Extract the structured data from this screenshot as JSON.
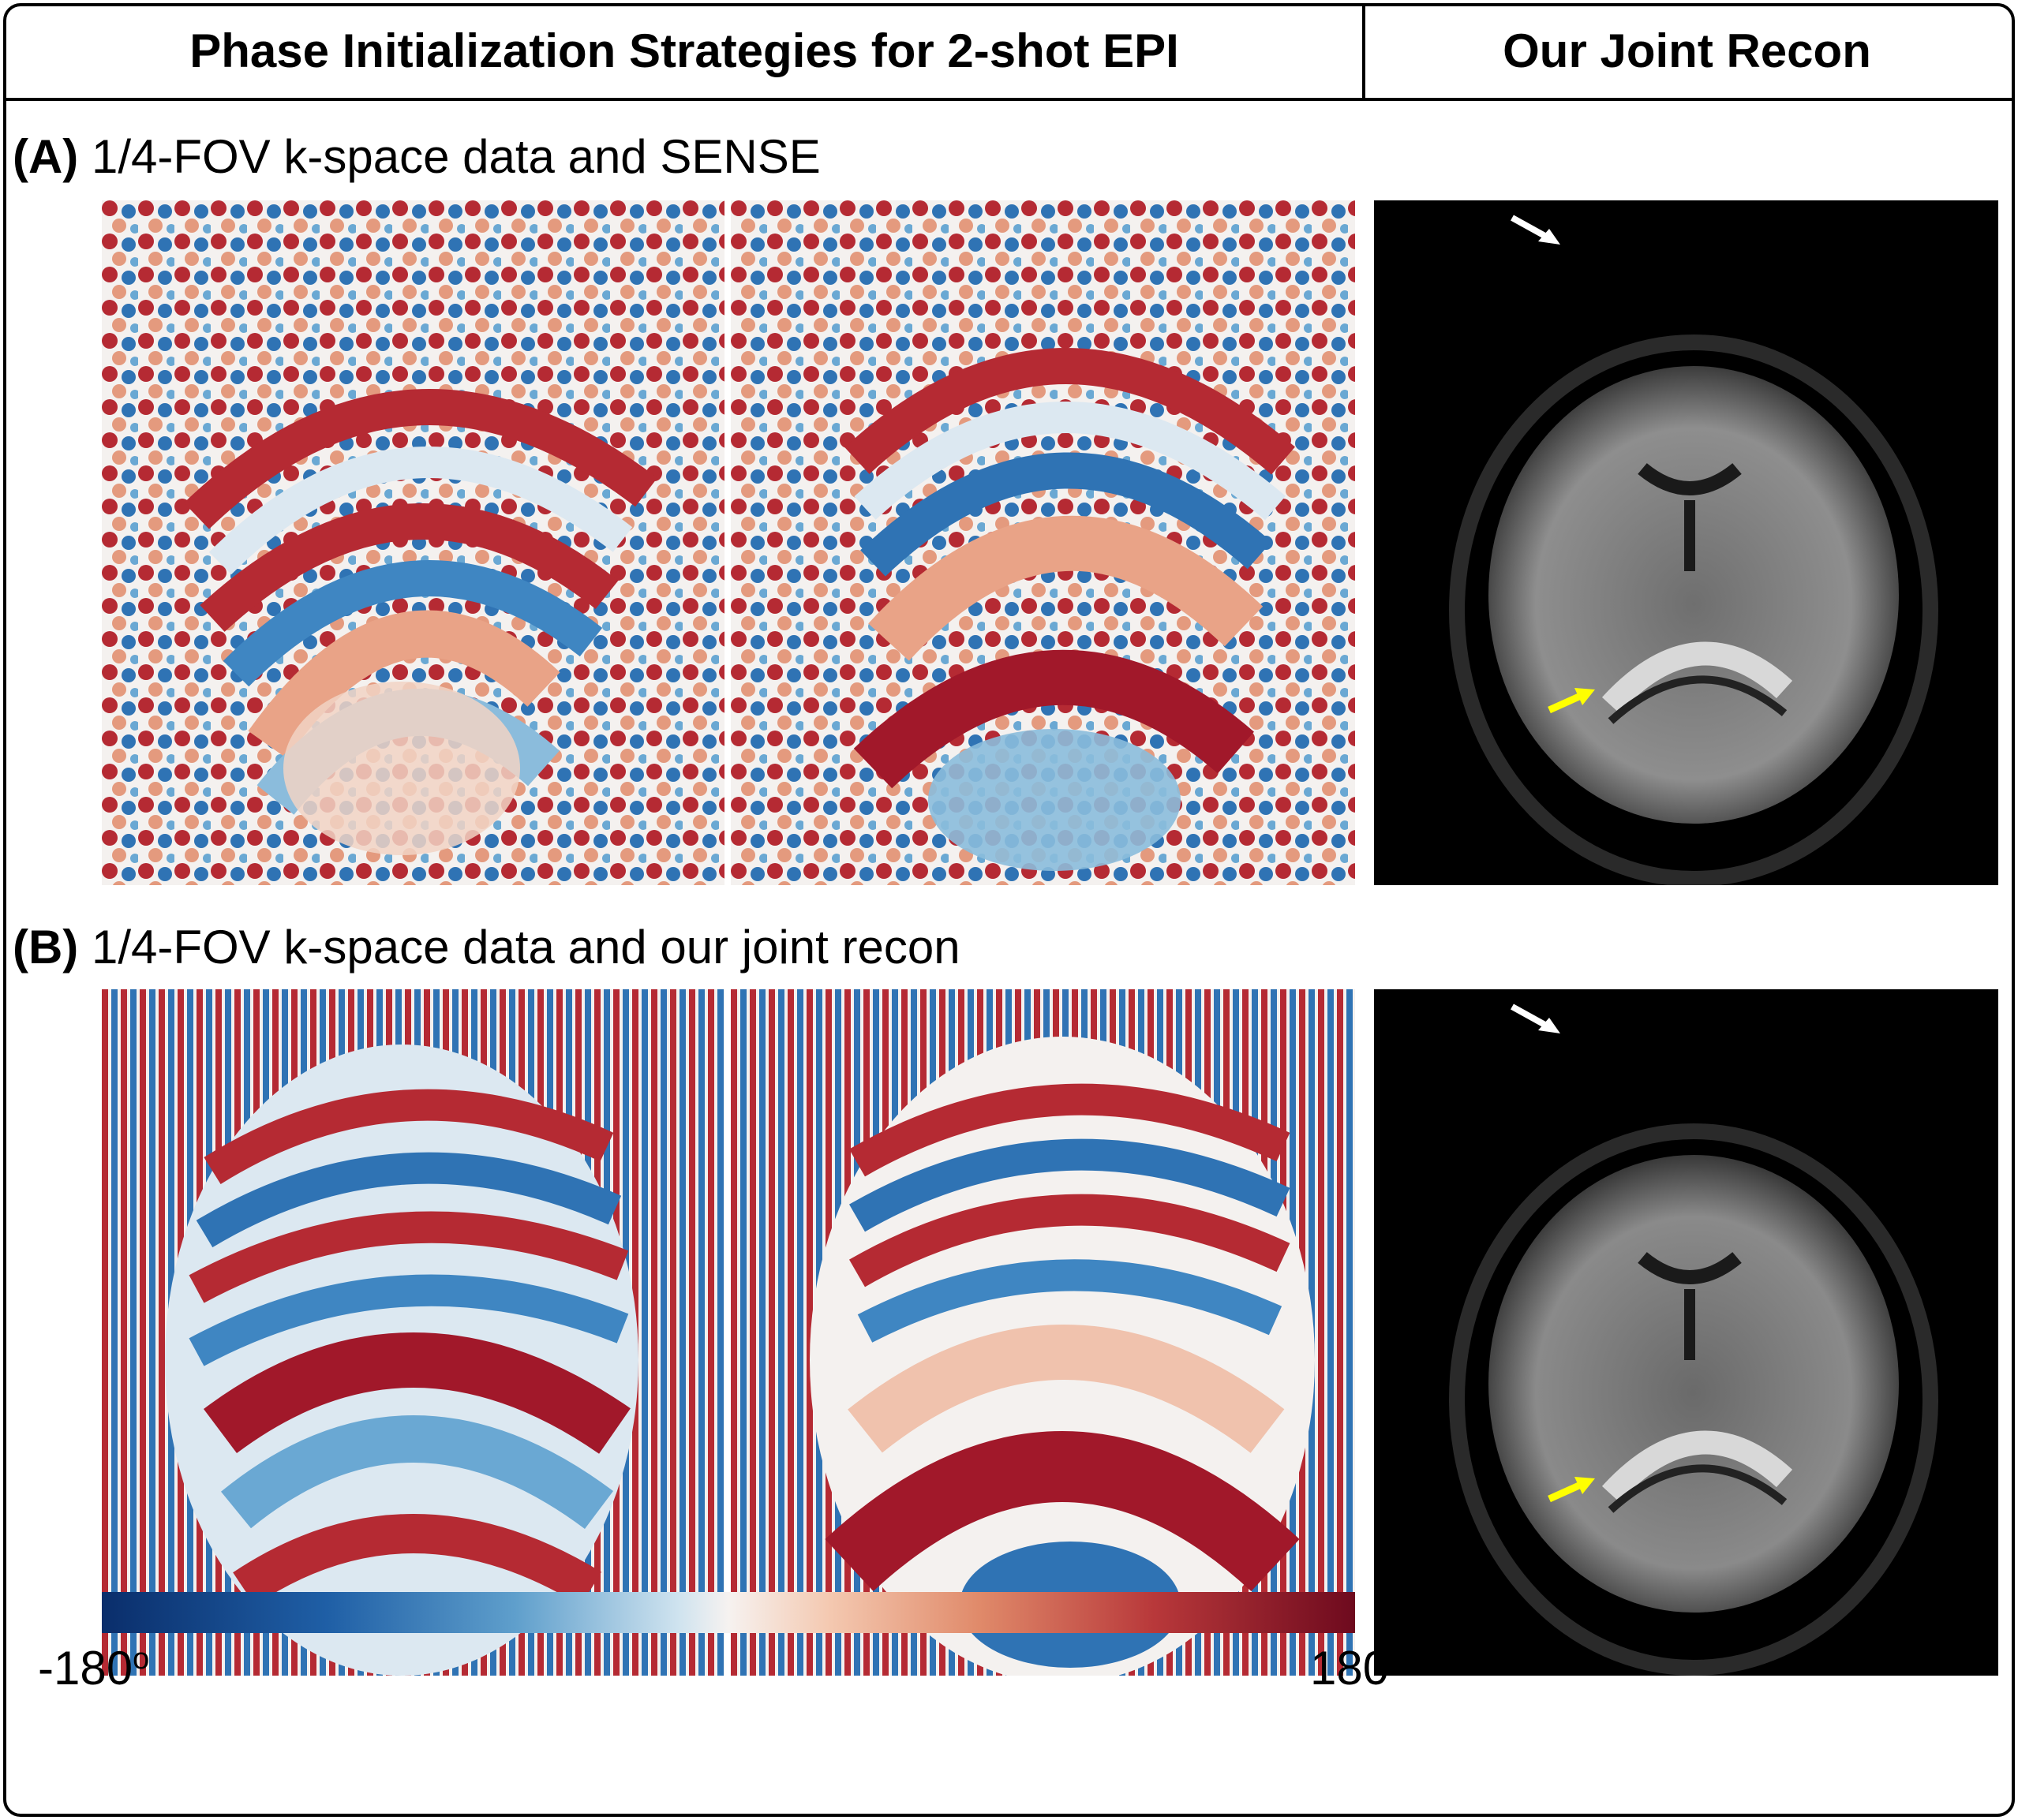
{
  "header": {
    "left_title": "Phase Initialization Strategies for 2-shot EPI",
    "right_title": "Our Joint Recon"
  },
  "rows": [
    {
      "letter": "(A)",
      "label": "1/4-FOV k-space data and SENSE"
    },
    {
      "letter": "(B)",
      "label": "1/4-FOV k-space data and our joint recon"
    }
  ],
  "colorbar": {
    "min_label": "-180",
    "max_label": "180",
    "unit": "o",
    "colormap": [
      "#0a2e6b",
      "#5f9fcc",
      "#f6f2f0",
      "#e08a6a",
      "#6e0a1e"
    ]
  },
  "annotations": {
    "white_arrow_color": "#ffffff",
    "yellow_arrow_color": "#ffff00"
  }
}
